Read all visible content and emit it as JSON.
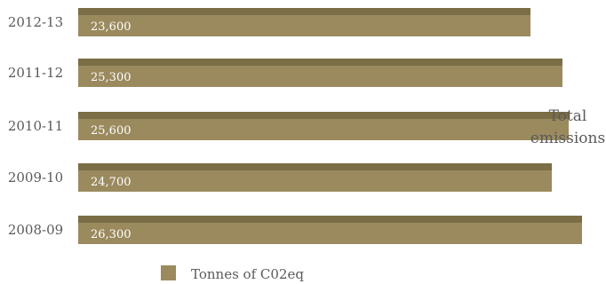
{
  "chart_data": {
    "type": "bar",
    "orientation": "horizontal",
    "categories": [
      "2012-13",
      "2011-12",
      "2010-11",
      "2009-10",
      "2008-09"
    ],
    "series": [
      {
        "name": "Tonnes of C02eq",
        "values": [
          23600,
          25300,
          25600,
          24700,
          26300
        ],
        "value_labels": [
          "23,600",
          "25,300",
          "25,600",
          "24,700",
          "26,300"
        ]
      }
    ],
    "side_label": [
      "Total",
      "emissions"
    ],
    "legend_position": "bottom",
    "colors": {
      "bar": "#9a8a5e",
      "bar_top": "#7b6d45"
    },
    "grid": false
  }
}
